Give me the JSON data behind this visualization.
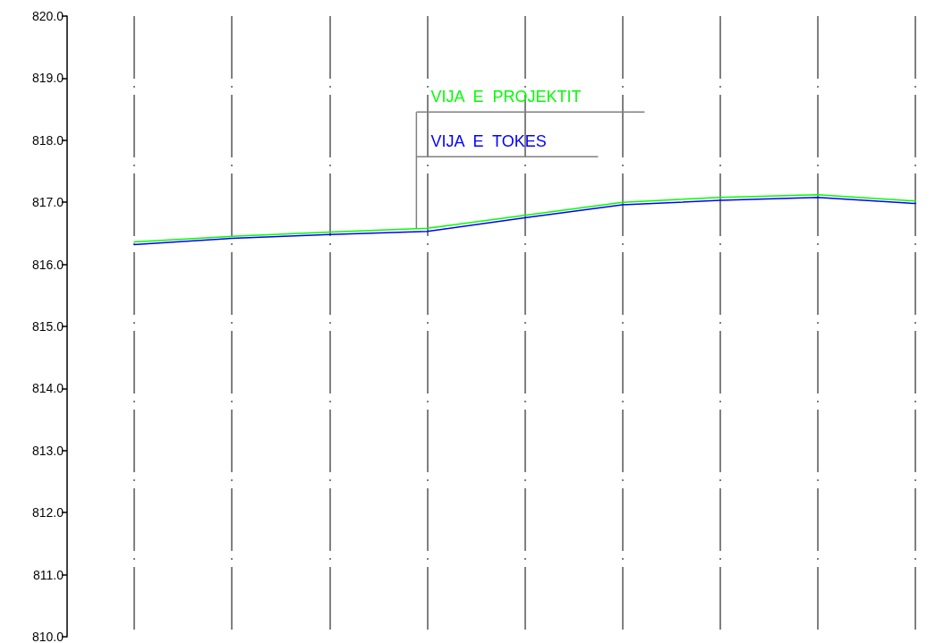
{
  "chart_data": {
    "type": "line",
    "categories": [
      null,
      null,
      null,
      null,
      null,
      null,
      null,
      null,
      null
    ],
    "series": [
      {
        "name": "VIJA  E  PROJEKTIT",
        "color": "#00ff00",
        "values": [
          816.36,
          816.45,
          816.52,
          816.58,
          816.79,
          817.0,
          817.08,
          817.12,
          817.02
        ]
      },
      {
        "name": "VIJA  E  TOKES",
        "color": "#0000ff",
        "values": [
          816.32,
          816.42,
          816.48,
          816.53,
          816.75,
          816.96,
          817.03,
          817.08,
          816.98
        ]
      }
    ],
    "ylim": [
      810,
      820
    ],
    "yticks": [
      {
        "value": 810,
        "label": "810.0"
      },
      {
        "value": 811,
        "label": "811.0"
      },
      {
        "value": 812,
        "label": "812.0"
      },
      {
        "value": 813,
        "label": "813.0"
      },
      {
        "value": 814,
        "label": "814.0"
      },
      {
        "value": 815,
        "label": "815.0"
      },
      {
        "value": 816,
        "label": "816.0"
      },
      {
        "value": 817,
        "label": "817.0"
      },
      {
        "value": 818,
        "label": "818.0"
      },
      {
        "value": 819,
        "label": "819.0"
      },
      {
        "value": 820,
        "label": "820.0"
      }
    ],
    "grid": "x",
    "marker": "none",
    "line_style": "solid",
    "tick_labels": "y"
  }
}
